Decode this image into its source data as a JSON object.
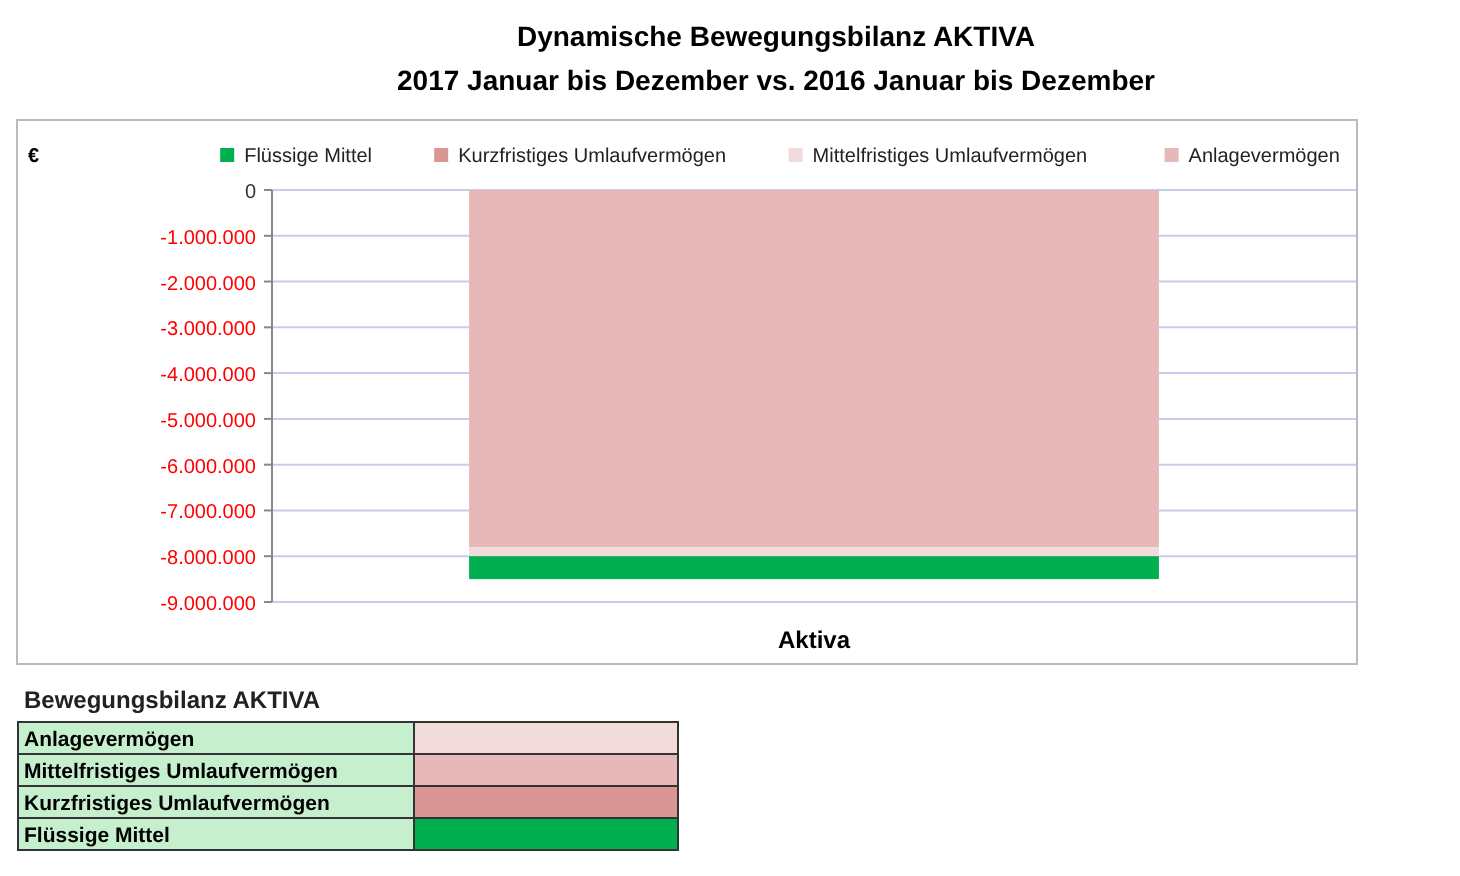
{
  "chart_data": {
    "type": "bar",
    "stacked": true,
    "title": "Dynamische Bewegungsbilanz AKTIVA",
    "subtitle": "2017 Januar bis Dezember vs. 2016 Januar bis Dezember",
    "categories": [
      "Aktiva"
    ],
    "series": [
      {
        "name": "Anlagevermögen",
        "color": "#e6b8b7",
        "values": [
          -7800000
        ]
      },
      {
        "name": "Mittelfristiges Umlaufvermögen",
        "color": "#f2dcdb",
        "values": [
          -200000
        ]
      },
      {
        "name": "Kurzfristiges Umlaufvermögen",
        "color": "#da9694",
        "values": [
          0
        ]
      },
      {
        "name": "Flüssige Mittel",
        "color": "#00b050",
        "values": [
          -500000
        ]
      }
    ],
    "ylim": [
      -9000000,
      0
    ],
    "yticks": [
      {
        "value": 0,
        "label": "0"
      },
      {
        "value": -1000000,
        "label": "-1.000.000"
      },
      {
        "value": -2000000,
        "label": "-2.000.000"
      },
      {
        "value": -3000000,
        "label": "-3.000.000"
      },
      {
        "value": -4000000,
        "label": "-4.000.000"
      },
      {
        "value": -5000000,
        "label": "-5.000.000"
      },
      {
        "value": -6000000,
        "label": "-6.000.000"
      },
      {
        "value": -7000000,
        "label": "-7.000.000"
      },
      {
        "value": -8000000,
        "label": "-8.000.000"
      },
      {
        "value": -9000000,
        "label": "-9.000.000"
      }
    ],
    "grid": "y",
    "legend": "top",
    "annotations": [
      "€",
      "Bewegungsbilanz  AKTIVA",
      "Anlagevermögen",
      "Mittelfristiges Umlaufvermögen",
      "Kurzfristiges Umlaufvermögen",
      "Flüssige Mittel"
    ]
  }
}
